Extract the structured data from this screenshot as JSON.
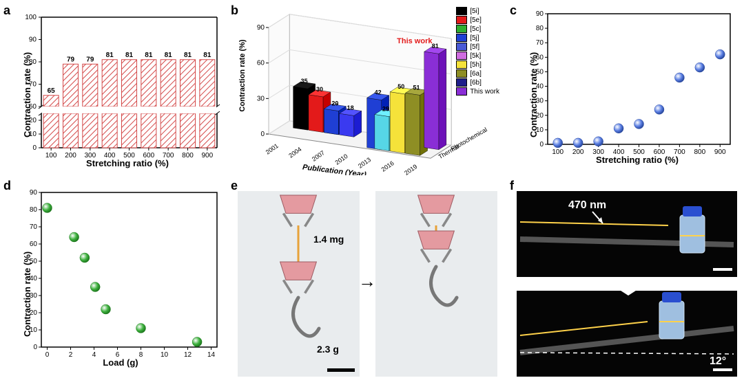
{
  "panel_a": {
    "type": "bar",
    "label": "a",
    "ylabel": "Contraction rate (%)",
    "xlabel": "Stretching ratio (%)",
    "categories": [
      "100",
      "200",
      "300",
      "400",
      "500",
      "600",
      "700",
      "800",
      "900"
    ],
    "values": [
      65,
      79,
      79,
      81,
      81,
      81,
      81,
      81,
      81
    ],
    "ylim_upper": [
      60,
      100
    ],
    "ylim_lower": [
      0,
      25
    ],
    "yticks_lower": [
      0,
      10,
      20
    ],
    "yticks_upper": [
      60,
      70,
      80,
      90,
      100
    ],
    "bar_fill": "#f7dcdc",
    "bar_stroke": "#d44848",
    "hatch": "diagonal",
    "grid_color": "none",
    "background": "#ffffff",
    "label_fontsize": 13
  },
  "panel_b": {
    "type": "bar-3d",
    "label": "b",
    "ylabel": "Contraction rate (%)",
    "xlabel": "Publication (Year)",
    "xcategories": [
      "2001",
      "2004",
      "2007",
      "2010",
      "2013",
      "2016",
      "2019"
    ],
    "zcategories": [
      "Thermal",
      "Photochemical"
    ],
    "yticks": [
      0,
      30,
      60,
      90
    ],
    "series": [
      {
        "name": "[5i]",
        "color": "#000000",
        "value": 35,
        "year": "2004",
        "z": "Photochemical"
      },
      {
        "name": "[5e]",
        "color": "#e31a1a",
        "value": 30,
        "year": "2004",
        "z": "Photochemical"
      },
      {
        "name": "[5c]",
        "color": "#2fae2f",
        "value": 18,
        "year": "2004",
        "z": "Photochemical"
      },
      {
        "name": "[5j]",
        "color": "#1f3fd4",
        "value": 20,
        "year": "2007",
        "z": "Photochemical"
      },
      {
        "name": "[5f]",
        "color": "#3a3af0",
        "value": 18,
        "year": "2007",
        "z": "Photochemical"
      },
      {
        "name": "[5k]",
        "color": "#1f3fd4",
        "value": 42,
        "year": "2013",
        "z": "Thermal"
      },
      {
        "name": "[5h]",
        "color": "#56d6e6",
        "value": 29,
        "year": "2016",
        "z": "Thermal"
      },
      {
        "name": "[6a]",
        "color": "#f5e23a",
        "value": 50,
        "year": "2016",
        "z": "Thermal"
      },
      {
        "name": "[6b]",
        "color": "#8e8e24",
        "value": 51,
        "year": "2016",
        "z": "Thermal"
      },
      {
        "name": "This work",
        "color": "#8a2ed6",
        "value": 81,
        "year": "2019",
        "z": "Photochemical"
      }
    ],
    "highlight_text": "This work",
    "highlight_color": "#e31a1a",
    "legend_colors": {
      "[5i]": "#000000",
      "[5e]": "#e31a1a",
      "[5c]": "#2fae2f",
      "[5j]": "#1f3fd4",
      "[5f]": "#4a5ad6",
      "[5k]": "#d06de0",
      "[5h]": "#f5e23a",
      "[6a]": "#8e8e24",
      "[6b]": "#1f1f8a",
      "This work": "#8a2ed6"
    },
    "legend_order": [
      "[5i]",
      "[5e]",
      "[5c]",
      "[5j]",
      "[5f]",
      "[5k]",
      "[5h]",
      "[6a]",
      "[6b]",
      "This work"
    ]
  },
  "panel_c": {
    "type": "scatter",
    "label": "c",
    "ylabel": "Contraction rate (%)",
    "xlabel": "Stretching ratio (%)",
    "xvalues": [
      100,
      200,
      300,
      400,
      500,
      600,
      700,
      800,
      900
    ],
    "yvalues": [
      1,
      1,
      2,
      11,
      14,
      24,
      46,
      53,
      62
    ],
    "yticks": [
      0,
      10,
      20,
      30,
      40,
      50,
      60,
      70,
      80,
      90
    ],
    "xticks": [
      100,
      200,
      300,
      400,
      500,
      600,
      700,
      800,
      900
    ],
    "ylim": [
      0,
      90
    ],
    "xlim": [
      50,
      950
    ],
    "marker_fill": "#5b7fe3",
    "marker_stroke": "#2a4aa0",
    "marker_size": 7
  },
  "panel_d": {
    "type": "scatter",
    "label": "d",
    "ylabel": "Contraction rate (%)",
    "xlabel": "Load (g)",
    "xvalues": [
      0,
      2.3,
      3.2,
      4.1,
      5.0,
      8.0,
      12.8
    ],
    "yvalues": [
      81,
      64,
      52,
      35,
      22,
      11,
      3
    ],
    "yticks": [
      0,
      10,
      20,
      30,
      40,
      50,
      60,
      70,
      80,
      90
    ],
    "xticks": [
      0,
      2,
      4,
      6,
      8,
      10,
      12,
      14
    ],
    "ylim": [
      0,
      90
    ],
    "xlim": [
      -0.5,
      14.5
    ],
    "marker_fill": "#3fb23f",
    "marker_stroke": "#1e7a1e",
    "marker_size": 7
  },
  "panel_e": {
    "type": "photo-pair",
    "label": "e",
    "text_weight": "1.4 mg",
    "text_load": "2.3 g",
    "arrow": "→",
    "scalebar": true,
    "clip_color": "#e49aa0",
    "hook_color": "#777777",
    "bg": "#e9ecee"
  },
  "panel_f": {
    "type": "photo-stack",
    "label": "f",
    "text_light": "470 nm",
    "text_angle": "12°",
    "arrow": "⬇",
    "bg": "#050505",
    "line_color": "#ffd24a",
    "vial_cap": "#2a4fd0",
    "dash_color": "#ffffff"
  },
  "colors": {
    "text": "#000000",
    "axes": "#000000"
  }
}
